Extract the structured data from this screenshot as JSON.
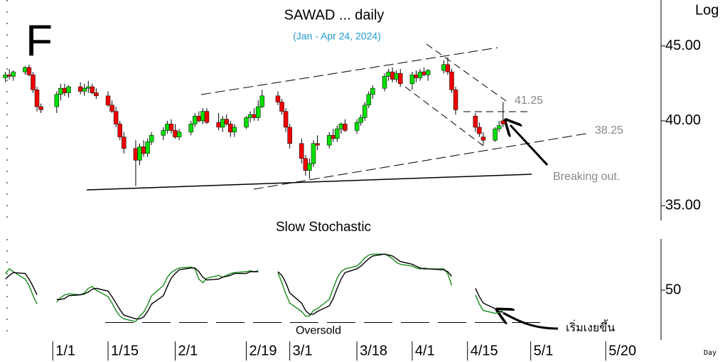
{
  "chart_data": [
    {
      "type": "candlestick",
      "panel_label": "F",
      "title": "SAWAD ... daily",
      "subtitle": "(Jan - Apr 24, 2024)",
      "y_axis_label": "Log",
      "y_scale": "log",
      "ylim": [
        34.2,
        48.1
      ],
      "yticks": [
        {
          "value": 35,
          "label": "35.00"
        },
        {
          "value": 40,
          "label": "40.00"
        },
        {
          "value": 45,
          "label": "45.00"
        }
      ],
      "xlim": [
        -13,
        154
      ],
      "up_color": "#00dd00",
      "down_color": "#ee0000",
      "x": [
        -12,
        -11,
        -10,
        -7,
        -6,
        -5,
        -4,
        -3,
        1,
        2,
        3,
        4,
        7,
        8,
        9,
        10,
        11,
        14,
        15,
        16,
        17,
        18,
        21,
        22,
        23,
        24,
        25,
        28,
        29,
        30,
        31,
        32,
        35,
        36,
        37,
        38,
        39,
        42,
        43,
        44,
        45,
        46,
        49,
        50,
        51,
        52,
        53,
        57,
        58,
        59,
        60,
        63,
        64,
        65,
        66,
        67,
        70,
        71,
        72,
        73,
        74,
        77,
        78,
        79,
        80,
        81,
        84,
        85,
        86,
        87,
        88,
        91,
        92,
        93,
        94,
        95,
        99,
        100,
        101,
        102,
        107,
        108,
        109,
        112,
        113,
        114
      ],
      "open": [
        42.8,
        43.0,
        42.9,
        43.2,
        43.5,
        43.0,
        42.0,
        40.9,
        40.9,
        41.7,
        42.1,
        41.8,
        42.2,
        41.9,
        42.1,
        42.2,
        41.8,
        41.6,
        41.0,
        40.6,
        39.8,
        39.0,
        38.3,
        37.6,
        38.4,
        38.0,
        38.7,
        39.1,
        39.4,
        39.8,
        39.4,
        39.0,
        39.3,
        39.8,
        40.3,
        40.0,
        40.6,
        39.9,
        39.6,
        40.1,
        39.8,
        39.3,
        39.6,
        40.2,
        40.4,
        40.2,
        40.9,
        41.6,
        41.2,
        40.6,
        39.6,
        38.6,
        37.7,
        37.0,
        37.4,
        38.6,
        38.5,
        39.1,
        38.9,
        39.5,
        39.8,
        39.4,
        39.9,
        40.2,
        41.0,
        41.7,
        42.1,
        42.9,
        43.2,
        42.7,
        43.1,
        42.4,
        43.0,
        42.8,
        43.2,
        43.0,
        43.3,
        43.7,
        43.2,
        42.0,
        40.3,
        39.6,
        39.0,
        38.8,
        39.5,
        40.0
      ],
      "high": [
        43.2,
        43.4,
        43.3,
        43.6,
        43.7,
        43.2,
        42.2,
        41.1,
        41.9,
        42.4,
        42.4,
        42.3,
        42.5,
        42.4,
        42.6,
        42.4,
        42.1,
        41.9,
        41.3,
        40.9,
        40.0,
        39.3,
        38.8,
        38.6,
        38.8,
        38.9,
        39.3,
        39.6,
        40.0,
        40.1,
        39.8,
        39.5,
        40.0,
        40.5,
        40.6,
        40.8,
        40.8,
        40.5,
        40.3,
        40.4,
        40.0,
        39.8,
        40.3,
        40.6,
        40.8,
        41.3,
        42.0,
        41.9,
        41.4,
        40.8,
        39.8,
        38.9,
        37.9,
        37.7,
        38.8,
        39.1,
        39.3,
        39.5,
        39.7,
        39.9,
        40.1,
        40.1,
        40.4,
        41.2,
        41.9,
        42.3,
        43.1,
        43.4,
        43.5,
        43.3,
        43.4,
        43.2,
        43.3,
        43.4,
        43.5,
        43.4,
        44.0,
        44.2,
        43.4,
        42.2,
        40.5,
        39.9,
        39.3,
        39.6,
        40.0,
        41.2
      ],
      "low": [
        42.5,
        42.7,
        42.6,
        43.0,
        42.9,
        41.8,
        40.6,
        40.5,
        40.5,
        41.3,
        41.6,
        41.5,
        41.7,
        41.6,
        41.8,
        41.7,
        41.4,
        40.9,
        40.5,
        39.6,
        38.8,
        38.0,
        36.1,
        37.3,
        37.8,
        37.8,
        38.5,
        38.8,
        39.2,
        39.2,
        38.9,
        38.8,
        39.1,
        39.6,
        39.9,
        39.8,
        39.8,
        39.4,
        39.3,
        39.7,
        39.0,
        39.0,
        39.5,
        39.9,
        40.0,
        40.0,
        40.8,
        41.0,
        40.4,
        39.3,
        38.3,
        37.4,
        36.7,
        36.5,
        37.2,
        38.2,
        38.3,
        38.7,
        38.7,
        39.2,
        39.3,
        39.2,
        39.7,
        40.0,
        40.8,
        41.4,
        41.9,
        42.6,
        42.5,
        42.5,
        42.2,
        42.0,
        42.5,
        42.6,
        42.9,
        42.6,
        43.1,
        43.0,
        41.8,
        40.4,
        39.3,
        39.0,
        38.5,
        38.7,
        39.3,
        39.6
      ],
      "close": [
        43.0,
        42.9,
        43.2,
        43.5,
        43.0,
        42.0,
        40.9,
        40.7,
        41.7,
        42.1,
        41.8,
        42.2,
        41.9,
        42.1,
        42.2,
        41.8,
        41.6,
        41.0,
        40.6,
        39.8,
        39.0,
        38.3,
        37.6,
        38.4,
        38.0,
        38.7,
        39.1,
        39.4,
        39.8,
        39.4,
        39.0,
        39.3,
        39.8,
        40.3,
        40.0,
        40.6,
        39.9,
        39.6,
        40.1,
        39.8,
        39.3,
        39.6,
        40.2,
        40.4,
        40.2,
        40.9,
        41.6,
        41.2,
        40.6,
        39.6,
        38.6,
        37.7,
        37.0,
        37.4,
        38.6,
        38.5,
        39.1,
        38.9,
        39.5,
        39.8,
        39.4,
        39.9,
        40.2,
        41.0,
        41.7,
        42.1,
        42.9,
        43.2,
        42.7,
        43.1,
        42.4,
        43.0,
        42.8,
        43.2,
        43.0,
        43.3,
        43.7,
        43.2,
        42.0,
        40.7,
        39.6,
        39.2,
        38.8,
        39.5,
        39.7,
        39.8
      ],
      "levels": [
        41.25,
        38.25
      ],
      "annotation": "Breaking out."
    },
    {
      "type": "line",
      "title": "Slow Stochastic",
      "ylim": [
        0,
        100
      ],
      "yticks": [
        50
      ],
      "xlim": [
        -13,
        154
      ],
      "x_axis_label": "Day",
      "xticks": [
        {
          "value": 0,
          "label": "1/1"
        },
        {
          "value": 14,
          "label": "1/15"
        },
        {
          "value": 31,
          "label": "2/1"
        },
        {
          "value": 49,
          "label": "2/19"
        },
        {
          "value": 60,
          "label": "3/1"
        },
        {
          "value": 77,
          "label": "3/18"
        },
        {
          "value": 91,
          "label": "4/1"
        },
        {
          "value": 105,
          "label": "4/15"
        },
        {
          "value": 121,
          "label": "5/1"
        },
        {
          "value": 140,
          "label": "5/20"
        }
      ],
      "x": [
        -12,
        -11,
        -10,
        -7,
        -6,
        -5,
        -4,
        -3,
        1,
        2,
        3,
        4,
        7,
        8,
        9,
        10,
        11,
        14,
        15,
        16,
        17,
        18,
        21,
        22,
        23,
        24,
        25,
        28,
        29,
        30,
        31,
        32,
        35,
        36,
        37,
        38,
        39,
        42,
        43,
        44,
        45,
        46,
        49,
        50,
        51,
        52,
        53,
        57,
        58,
        59,
        60,
        63,
        64,
        65,
        66,
        67,
        70,
        71,
        72,
        73,
        74,
        77,
        78,
        79,
        80,
        81,
        84,
        85,
        86,
        87,
        88,
        91,
        92,
        93,
        94,
        95,
        99,
        100,
        101,
        102,
        107,
        108,
        109,
        112,
        113,
        114
      ],
      "series": [
        {
          "color": "#1a8a1a",
          "values": [
            68,
            73,
            70,
            62,
            55,
            44,
            35,
            null,
            37,
            42,
            45,
            46,
            45,
            47,
            52,
            54,
            50,
            43,
            36,
            28,
            22,
            19,
            16,
            22,
            26,
            34,
            44,
            55,
            64,
            69,
            72,
            74,
            75,
            73,
            62,
            58,
            63,
            66,
            64,
            66,
            68,
            69,
            70,
            71,
            70,
            71,
            null,
            69,
            58,
            46,
            36,
            27,
            22,
            22,
            28,
            30,
            40,
            52,
            63,
            70,
            73,
            76,
            80,
            85,
            88,
            89,
            89,
            87,
            84,
            80,
            78,
            76,
            74,
            73,
            74,
            73,
            73,
            68,
            55,
            null,
            45,
            35,
            28,
            25,
            26,
            28
          ]
        },
        {
          "color": "#000000",
          "values": [
            62,
            66,
            69,
            68,
            62,
            54,
            45,
            null,
            40,
            40,
            41,
            44,
            45,
            46,
            48,
            51,
            52,
            49,
            43,
            36,
            29,
            23,
            19,
            19,
            21,
            27,
            35,
            44,
            54,
            63,
            68,
            72,
            74,
            74,
            70,
            64,
            61,
            62,
            64,
            65,
            66,
            68,
            68,
            70,
            70,
            70,
            null,
            70,
            66,
            58,
            47,
            36,
            28,
            24,
            24,
            27,
            33,
            41,
            52,
            62,
            69,
            73,
            76,
            80,
            84,
            87,
            89,
            88,
            87,
            84,
            81,
            78,
            76,
            74,
            73,
            73,
            72,
            70,
            65,
            null,
            52,
            43,
            36,
            30,
            27,
            26
          ]
        }
      ],
      "oversold": {
        "text": "Oversold",
        "value": 15
      },
      "annotation": "เริ่มเงยขึ้น"
    }
  ]
}
